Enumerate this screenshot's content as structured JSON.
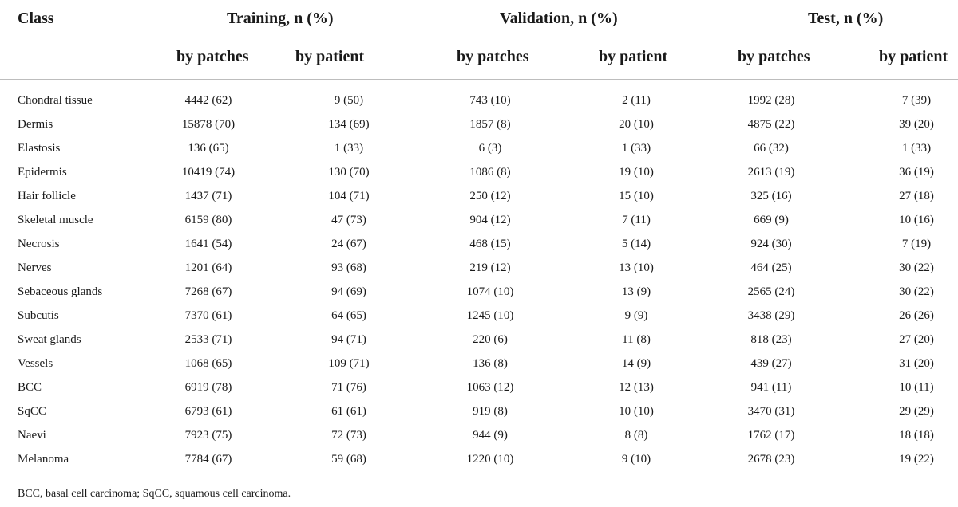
{
  "table": {
    "header": {
      "class": "Class",
      "groups": [
        {
          "title": "Training, n (%)",
          "sub1": "by patches",
          "sub2": "by patient"
        },
        {
          "title": "Validation, n (%)",
          "sub1": "by patches",
          "sub2": "by patient"
        },
        {
          "title": "Test, n (%)",
          "sub1": "by patches",
          "sub2": "by patient"
        }
      ]
    },
    "rows": [
      {
        "class": "Chondral tissue",
        "train_patches": "4442 (62)",
        "train_patient": "9 (50)",
        "val_patches": "743 (10)",
        "val_patient": "2 (11)",
        "test_patches": "1992 (28)",
        "test_patient": "7 (39)"
      },
      {
        "class": "Dermis",
        "train_patches": "15878 (70)",
        "train_patient": "134 (69)",
        "val_patches": "1857 (8)",
        "val_patient": "20 (10)",
        "test_patches": "4875 (22)",
        "test_patient": "39 (20)"
      },
      {
        "class": "Elastosis",
        "train_patches": "136 (65)",
        "train_patient": "1 (33)",
        "val_patches": "6 (3)",
        "val_patient": "1 (33)",
        "test_patches": "66 (32)",
        "test_patient": "1 (33)"
      },
      {
        "class": "Epidermis",
        "train_patches": "10419 (74)",
        "train_patient": "130 (70)",
        "val_patches": "1086 (8)",
        "val_patient": "19 (10)",
        "test_patches": "2613 (19)",
        "test_patient": "36 (19)"
      },
      {
        "class": "Hair follicle",
        "train_patches": "1437 (71)",
        "train_patient": "104 (71)",
        "val_patches": "250 (12)",
        "val_patient": "15 (10)",
        "test_patches": "325 (16)",
        "test_patient": "27 (18)"
      },
      {
        "class": "Skeletal muscle",
        "train_patches": "6159 (80)",
        "train_patient": "47 (73)",
        "val_patches": "904 (12)",
        "val_patient": "7 (11)",
        "test_patches": "669 (9)",
        "test_patient": "10 (16)"
      },
      {
        "class": "Necrosis",
        "train_patches": "1641 (54)",
        "train_patient": "24 (67)",
        "val_patches": "468 (15)",
        "val_patient": "5 (14)",
        "test_patches": "924 (30)",
        "test_patient": "7 (19)"
      },
      {
        "class": "Nerves",
        "train_patches": "1201 (64)",
        "train_patient": "93 (68)",
        "val_patches": "219 (12)",
        "val_patient": "13 (10)",
        "test_patches": "464 (25)",
        "test_patient": "30 (22)"
      },
      {
        "class": "Sebaceous glands",
        "train_patches": "7268 (67)",
        "train_patient": "94 (69)",
        "val_patches": "1074 (10)",
        "val_patient": "13 (9)",
        "test_patches": "2565 (24)",
        "test_patient": "30 (22)"
      },
      {
        "class": "Subcutis",
        "train_patches": "7370 (61)",
        "train_patient": "64 (65)",
        "val_patches": "1245 (10)",
        "val_patient": "9 (9)",
        "test_patches": "3438 (29)",
        "test_patient": "26 (26)"
      },
      {
        "class": "Sweat glands",
        "train_patches": "2533 (71)",
        "train_patient": "94 (71)",
        "val_patches": "220 (6)",
        "val_patient": "11 (8)",
        "test_patches": "818 (23)",
        "test_patient": "27 (20)"
      },
      {
        "class": "Vessels",
        "train_patches": "1068 (65)",
        "train_patient": "109 (71)",
        "val_patches": "136 (8)",
        "val_patient": "14 (9)",
        "test_patches": "439 (27)",
        "test_patient": "31 (20)"
      },
      {
        "class": "BCC",
        "train_patches": "6919 (78)",
        "train_patient": "71 (76)",
        "val_patches": "1063 (12)",
        "val_patient": "12 (13)",
        "test_patches": "941 (11)",
        "test_patient": "10 (11)"
      },
      {
        "class": "SqCC",
        "train_patches": "6793 (61)",
        "train_patient": "61 (61)",
        "val_patches": "919 (8)",
        "val_patient": "10 (10)",
        "test_patches": "3470 (31)",
        "test_patient": "29 (29)"
      },
      {
        "class": "Naevi",
        "train_patches": "7923 (75)",
        "train_patient": "72 (73)",
        "val_patches": "944 (9)",
        "val_patient": "8 (8)",
        "test_patches": "1762 (17)",
        "test_patient": "18 (18)"
      },
      {
        "class": "Melanoma",
        "train_patches": "7784 (67)",
        "train_patient": "59 (68)",
        "val_patches": "1220 (10)",
        "val_patient": "9 (10)",
        "test_patches": "2678 (23)",
        "test_patient": "19 (22)"
      }
    ],
    "footnote": "BCC, basal cell carcinoma; SqCC, squamous cell carcinoma."
  }
}
